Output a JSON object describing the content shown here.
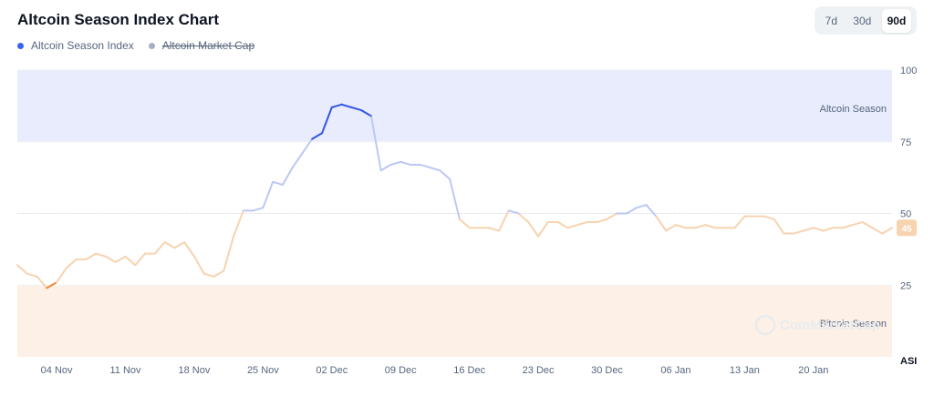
{
  "chart_data": {
    "type": "line",
    "title": "Altcoin Season Index Chart",
    "legend": [
      {
        "name": "Altcoin Season Index",
        "color": "#3861fb",
        "active": true
      },
      {
        "name": "Altcoin Market Cap",
        "color": "#a6b0c3",
        "active": false
      }
    ],
    "ranges": [
      "7d",
      "30d",
      "90d"
    ],
    "selected_range": "90d",
    "y_ticks": [
      100,
      75,
      50,
      25
    ],
    "ylim": [
      0,
      100
    ],
    "y_unit_label": "ASI",
    "x_ticks": [
      "04 Nov",
      "11 Nov",
      "18 Nov",
      "25 Nov",
      "02 Dec",
      "09 Dec",
      "16 Dec",
      "23 Dec",
      "30 Dec",
      "06 Jan",
      "13 Jan",
      "20 Jan"
    ],
    "x_tick_dates": [
      "2024-11-04",
      "2024-11-11",
      "2024-11-18",
      "2024-11-25",
      "2024-12-02",
      "2024-12-09",
      "2024-12-16",
      "2024-12-23",
      "2024-12-30",
      "2025-01-06",
      "2025-01-13",
      "2025-01-20"
    ],
    "xlim": [
      "2024-10-31",
      "2025-01-28"
    ],
    "zones": [
      {
        "label": "Altcoin Season",
        "from": 75,
        "to": 100,
        "color": "#e8ecfd"
      },
      {
        "label": "Bitcoin Season",
        "from": 0,
        "to": 25,
        "color": "#fdf0e7"
      }
    ],
    "current_value": "45",
    "watermark": "CoinMarketCap",
    "series": [
      {
        "name": "Altcoin Season Index",
        "x": [
          "2024-10-31",
          "2024-11-01",
          "2024-11-02",
          "2024-11-03",
          "2024-11-04",
          "2024-11-05",
          "2024-11-06",
          "2024-11-07",
          "2024-11-08",
          "2024-11-09",
          "2024-11-10",
          "2024-11-11",
          "2024-11-12",
          "2024-11-13",
          "2024-11-14",
          "2024-11-15",
          "2024-11-16",
          "2024-11-17",
          "2024-11-18",
          "2024-11-19",
          "2024-11-20",
          "2024-11-21",
          "2024-11-22",
          "2024-11-23",
          "2024-11-24",
          "2024-11-25",
          "2024-11-26",
          "2024-11-27",
          "2024-11-28",
          "2024-11-29",
          "2024-11-30",
          "2024-12-01",
          "2024-12-02",
          "2024-12-03",
          "2024-12-04",
          "2024-12-05",
          "2024-12-06",
          "2024-12-07",
          "2024-12-08",
          "2024-12-09",
          "2024-12-10",
          "2024-12-11",
          "2024-12-12",
          "2024-12-13",
          "2024-12-14",
          "2024-12-15",
          "2024-12-16",
          "2024-12-17",
          "2024-12-18",
          "2024-12-19",
          "2024-12-20",
          "2024-12-21",
          "2024-12-22",
          "2024-12-23",
          "2024-12-24",
          "2024-12-25",
          "2024-12-26",
          "2024-12-27",
          "2024-12-28",
          "2024-12-29",
          "2024-12-30",
          "2024-12-31",
          "2025-01-01",
          "2025-01-02",
          "2025-01-03",
          "2025-01-04",
          "2025-01-05",
          "2025-01-06",
          "2025-01-07",
          "2025-01-08",
          "2025-01-09",
          "2025-01-10",
          "2025-01-11",
          "2025-01-12",
          "2025-01-13",
          "2025-01-14",
          "2025-01-15",
          "2025-01-16",
          "2025-01-17",
          "2025-01-18",
          "2025-01-19",
          "2025-01-20",
          "2025-01-21",
          "2025-01-22",
          "2025-01-23",
          "2025-01-24",
          "2025-01-25",
          "2025-01-26",
          "2025-01-27",
          "2025-01-28"
        ],
        "values": [
          32,
          29,
          28,
          24,
          26,
          31,
          34,
          34,
          36,
          35,
          33,
          35,
          32,
          36,
          36,
          40,
          38,
          40,
          35,
          29,
          28,
          30,
          42,
          51,
          51,
          52,
          61,
          60,
          66,
          71,
          76,
          78,
          87,
          88,
          87,
          86,
          84,
          65,
          67,
          68,
          67,
          67,
          66,
          65,
          62,
          48,
          45,
          45,
          45,
          44,
          51,
          50,
          47,
          42,
          47,
          47,
          45,
          46,
          47,
          47,
          48,
          50,
          50,
          52,
          53,
          49,
          44,
          46,
          45,
          45,
          46,
          45,
          45,
          45,
          49,
          49,
          49,
          48,
          43,
          43,
          44,
          45,
          44,
          45,
          45,
          46,
          47,
          45,
          43,
          45
        ]
      }
    ]
  }
}
